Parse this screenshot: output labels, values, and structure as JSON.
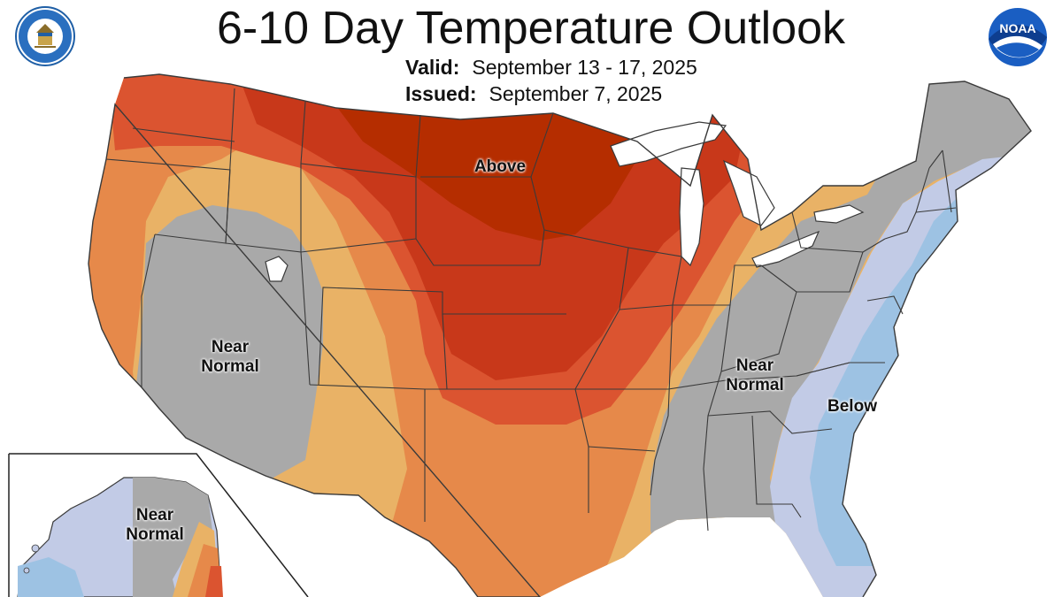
{
  "header": {
    "title": "6-10 Day Temperature Outlook",
    "valid_label": "Valid:",
    "valid_value": "September 13 - 17, 2025",
    "issued_label": "Issued:",
    "issued_value": "September 7, 2025"
  },
  "logos": {
    "left": "department-of-commerce-seal",
    "right": "noaa-logo",
    "right_text": "NOAA"
  },
  "map": {
    "regions": [
      {
        "name": "above",
        "label": "Above"
      },
      {
        "name": "near-normal-west",
        "label_line1": "Near",
        "label_line2": "Normal"
      },
      {
        "name": "near-normal-east",
        "label_line1": "Near",
        "label_line2": "Normal"
      },
      {
        "name": "below",
        "label": "Below"
      },
      {
        "name": "near-normal-alaska",
        "label_line1": "Near",
        "label_line2": "Normal"
      }
    ]
  },
  "colors": {
    "above_strong": "#b52d00",
    "above_high": "#c8381a",
    "above_mid": "#db5430",
    "above_low": "#e6894a",
    "above_slight": "#e9b266",
    "near_normal": "#a9a9a9",
    "below_slight": "#c2cbe6",
    "below_low": "#9dc2e3",
    "water": "#ffffff",
    "border": "#3a3a3a"
  }
}
